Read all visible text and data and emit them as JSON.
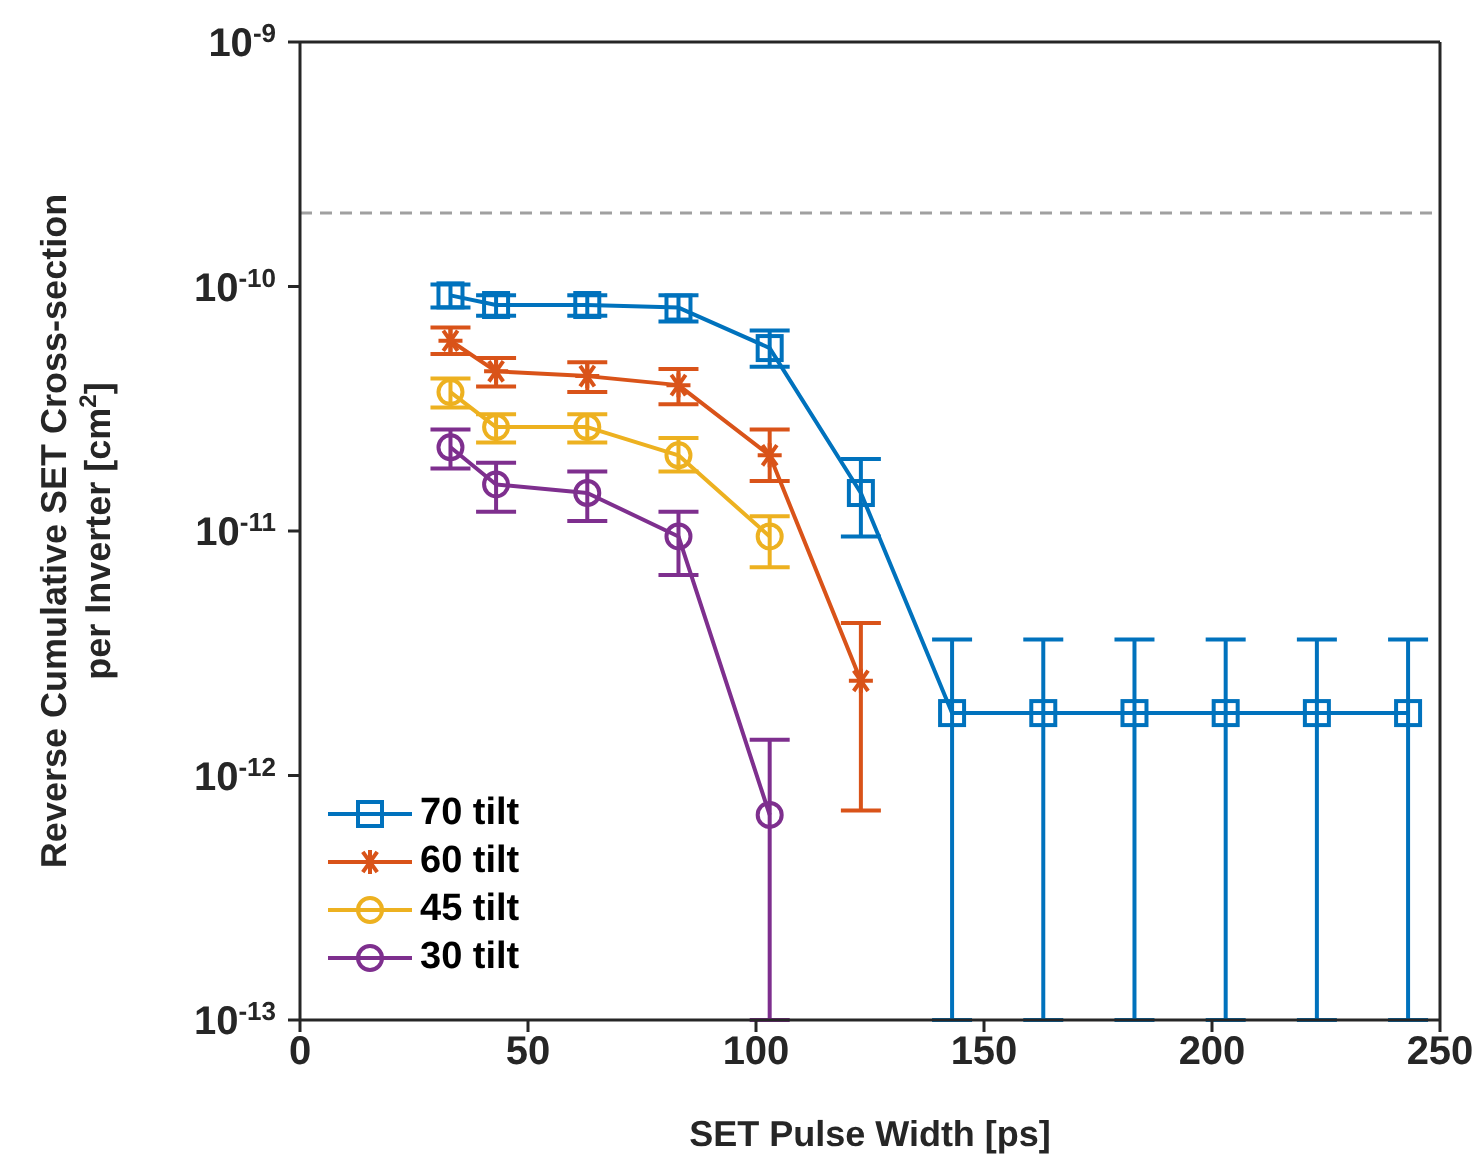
{
  "chart_data": {
    "type": "line",
    "xlabel": "SET Pulse Width [ps]",
    "ylabel": "Reverse Cumulative SET Cross-section\nper Inverter [cm$^{2}$]",
    "x": [
      33,
      43,
      63,
      83,
      103,
      123,
      143,
      163,
      183,
      203,
      223,
      243
    ],
    "series": [
      {
        "name": "70 tilt",
        "color": "#0072bd",
        "marker": "square",
        "values": [
          9.2e-11,
          8.4e-11,
          8.4e-11,
          8.2e-11,
          5.6e-11,
          1.43e-11,
          1.8e-12,
          1.8e-12,
          1.8e-12,
          1.8e-12,
          1.8e-12,
          1.8e-12
        ],
        "errors": [
          [
            8.2e-11,
            1.02e-10
          ],
          [
            7.6e-11,
            9.2e-11
          ],
          [
            7.6e-11,
            9.2e-11
          ],
          [
            7.2e-11,
            9.2e-11
          ],
          [
            4.7e-11,
            6.6e-11
          ],
          [
            9.5e-12,
            1.97e-11
          ],
          [
            1e-13,
            3.6e-12
          ],
          [
            1e-13,
            3.6e-12
          ],
          [
            1e-13,
            3.6e-12
          ],
          [
            1e-13,
            3.6e-12
          ],
          [
            1e-13,
            3.6e-12
          ],
          [
            1e-13,
            3.6e-12
          ]
        ]
      },
      {
        "name": "60 tilt",
        "color": "#d95319",
        "marker": "cross",
        "values": [
          6e-11,
          4.5e-11,
          4.3e-11,
          3.95e-11,
          2.04e-11,
          2.44e-12,
          null,
          null,
          null,
          null,
          null,
          null
        ],
        "errors": [
          [
            5.3e-11,
            6.8e-11
          ],
          [
            3.9e-11,
            5.1e-11
          ],
          [
            3.7e-11,
            4.9e-11
          ],
          [
            3.3e-11,
            4.6e-11
          ],
          [
            1.6e-11,
            2.6e-11
          ],
          [
            7.2e-13,
            4.2e-12
          ],
          null,
          null,
          null,
          null,
          null,
          null
        ]
      },
      {
        "name": "45 tilt",
        "color": "#edb120",
        "marker": "circle",
        "values": [
          3.7e-11,
          2.66e-11,
          2.66e-11,
          2.04e-11,
          9.5e-12,
          null,
          null,
          null,
          null,
          null,
          null,
          null
        ],
        "errors": [
          [
            3.2e-11,
            4.2e-11
          ],
          [
            2.3e-11,
            3e-11
          ],
          [
            2.3e-11,
            3e-11
          ],
          [
            1.75e-11,
            2.4e-11
          ],
          [
            7.1e-12,
            1.15e-11
          ],
          null,
          null,
          null,
          null,
          null,
          null,
          null
        ]
      },
      {
        "name": "30 tilt",
        "color": "#7e2f8e",
        "marker": "circle",
        "values": [
          2.2e-11,
          1.55e-11,
          1.43e-11,
          9.5e-12,
          6.9e-13,
          null,
          null,
          null,
          null,
          null,
          null,
          null
        ],
        "errors": [
          [
            1.8e-11,
            2.6e-11
          ],
          [
            1.2e-11,
            1.9e-11
          ],
          [
            1.1e-11,
            1.75e-11
          ],
          [
            6.6e-12,
            1.2e-11
          ],
          [
            1e-13,
            1.4e-12
          ],
          null,
          null,
          null,
          null,
          null,
          null,
          null
        ]
      }
    ],
    "xlim": [
      0,
      250
    ],
    "xticks": [
      0,
      50,
      100,
      150,
      200,
      250
    ],
    "ylim": [
      1e-13,
      1e-09
    ],
    "log": "y",
    "yticks": [
      {
        "value": 1e-13,
        "label": "10$^{-13}$"
      },
      {
        "value": 1e-12,
        "label": "10$^{-12}$"
      },
      {
        "value": 1e-11,
        "label": "10$^{-11}$"
      },
      {
        "value": 1e-10,
        "label": "10$^{-10}$"
      },
      {
        "value": 1e-09,
        "label": "10$^{-9}$"
      }
    ],
    "ref_lines": [
      {
        "axis": "y",
        "value": 2e-10,
        "color": "#a0a0a0",
        "line_style": "dashed"
      }
    ],
    "grid": false,
    "legend": "bottom left",
    "line_style": "solid"
  }
}
